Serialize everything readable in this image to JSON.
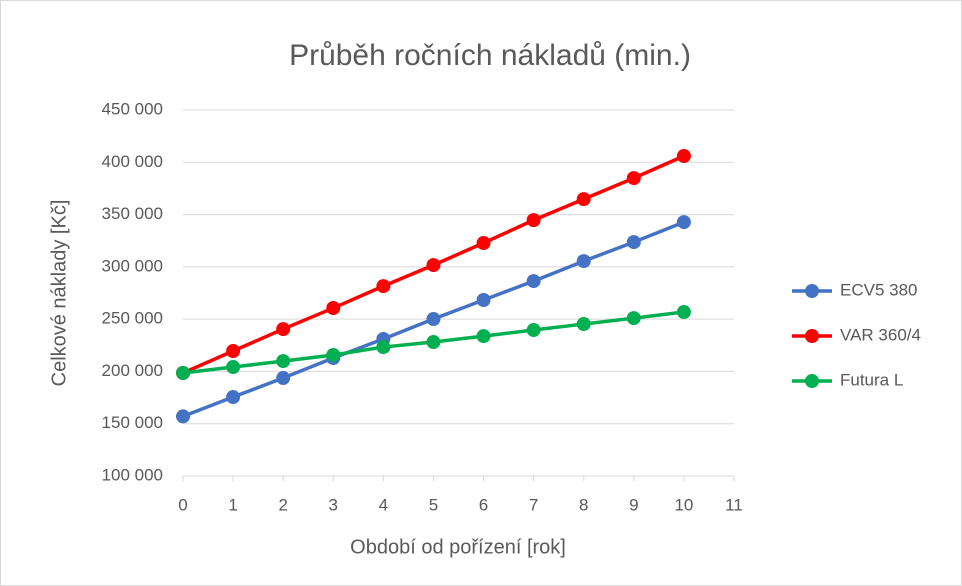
{
  "chart_data": {
    "type": "line",
    "title": "Průběh ročních nákladů (min.)",
    "xlabel": "Období od pořízení [rok]",
    "ylabel": "Celkové náklady [Kč]",
    "x": [
      0,
      1,
      2,
      3,
      4,
      5,
      6,
      7,
      8,
      9,
      10
    ],
    "series": [
      {
        "name": "ECV5 380",
        "color": "#4472c4",
        "values": [
          157000,
          175500,
          193700,
          212800,
          231000,
          250100,
          268300,
          286400,
          305500,
          323700,
          342800
        ]
      },
      {
        "name": "VAR 360/4",
        "color": "#ff0000",
        "values": [
          198500,
          219500,
          240500,
          260600,
          281600,
          301700,
          322800,
          344700,
          364800,
          384900,
          406000
        ]
      },
      {
        "name": "Futura L",
        "color": "#00b050",
        "values": [
          198500,
          204200,
          209900,
          215700,
          223300,
          228100,
          233800,
          239600,
          245300,
          251000,
          256800
        ]
      }
    ],
    "xlim": [
      0,
      11
    ],
    "xticks": [
      0,
      1,
      2,
      3,
      4,
      5,
      6,
      7,
      8,
      9,
      10,
      11
    ],
    "ylim": [
      100000,
      450000
    ],
    "yticks": [
      {
        "value": 100000,
        "label": "100 000"
      },
      {
        "value": 150000,
        "label": "150 000"
      },
      {
        "value": 200000,
        "label": "200 000"
      },
      {
        "value": 250000,
        "label": "250 000"
      },
      {
        "value": 300000,
        "label": "300 000"
      },
      {
        "value": 350000,
        "label": "350 000"
      },
      {
        "value": 400000,
        "label": "400 000"
      },
      {
        "value": 450000,
        "label": "450 000"
      }
    ],
    "grid": true,
    "legend": "right"
  }
}
